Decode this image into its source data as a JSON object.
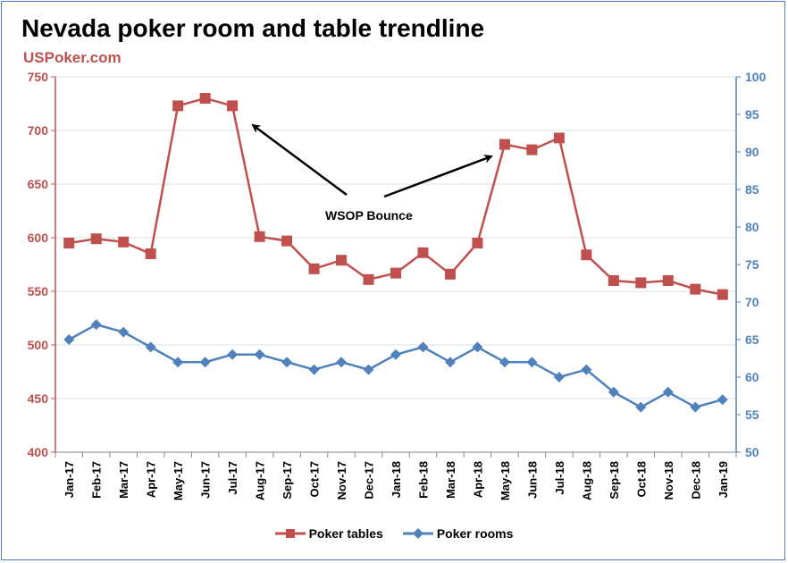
{
  "title": "Nevada poker room and table trendline",
  "subtitle": "USPoker.com",
  "colors": {
    "tables": "#c0504d",
    "rooms": "#4f81bd",
    "grid": "#d9e3ee"
  },
  "annotation": "WSOP Bounce",
  "legend": {
    "tables": "Poker tables",
    "rooms": "Poker rooms"
  },
  "chart_data": {
    "type": "line",
    "categories": [
      "Jan-17",
      "Feb-17",
      "Mar-17",
      "Apr-17",
      "May-17",
      "Jun-17",
      "Jul-17",
      "Aug-17",
      "Sep-17",
      "Oct-17",
      "Nov-17",
      "Dec-17",
      "Jan-18",
      "Feb-18",
      "Mar-18",
      "Apr-18",
      "May-18",
      "Jun-18",
      "Jul-18",
      "Aug-18",
      "Sep-18",
      "Oct-18",
      "Nov-18",
      "Dec-18",
      "Jan-19"
    ],
    "y_left": {
      "min": 400,
      "max": 750,
      "step": 50
    },
    "y_right": {
      "min": 50,
      "max": 100,
      "step": 5
    },
    "series": [
      {
        "name": "Poker tables",
        "axis": "left",
        "marker": "square",
        "values": [
          595,
          599,
          596,
          585,
          723,
          730,
          723,
          601,
          597,
          571,
          579,
          561,
          567,
          586,
          566,
          595,
          687,
          682,
          693,
          584,
          560,
          558,
          560,
          552,
          547
        ]
      },
      {
        "name": "Poker rooms",
        "axis": "right",
        "marker": "diamond",
        "values": [
          65,
          67,
          66,
          64,
          62,
          62,
          63,
          63,
          62,
          61,
          62,
          61,
          63,
          64,
          62,
          64,
          62,
          62,
          60,
          61,
          58,
          56,
          58,
          56,
          57
        ]
      }
    ],
    "grid": true,
    "legend_position": "bottom"
  }
}
